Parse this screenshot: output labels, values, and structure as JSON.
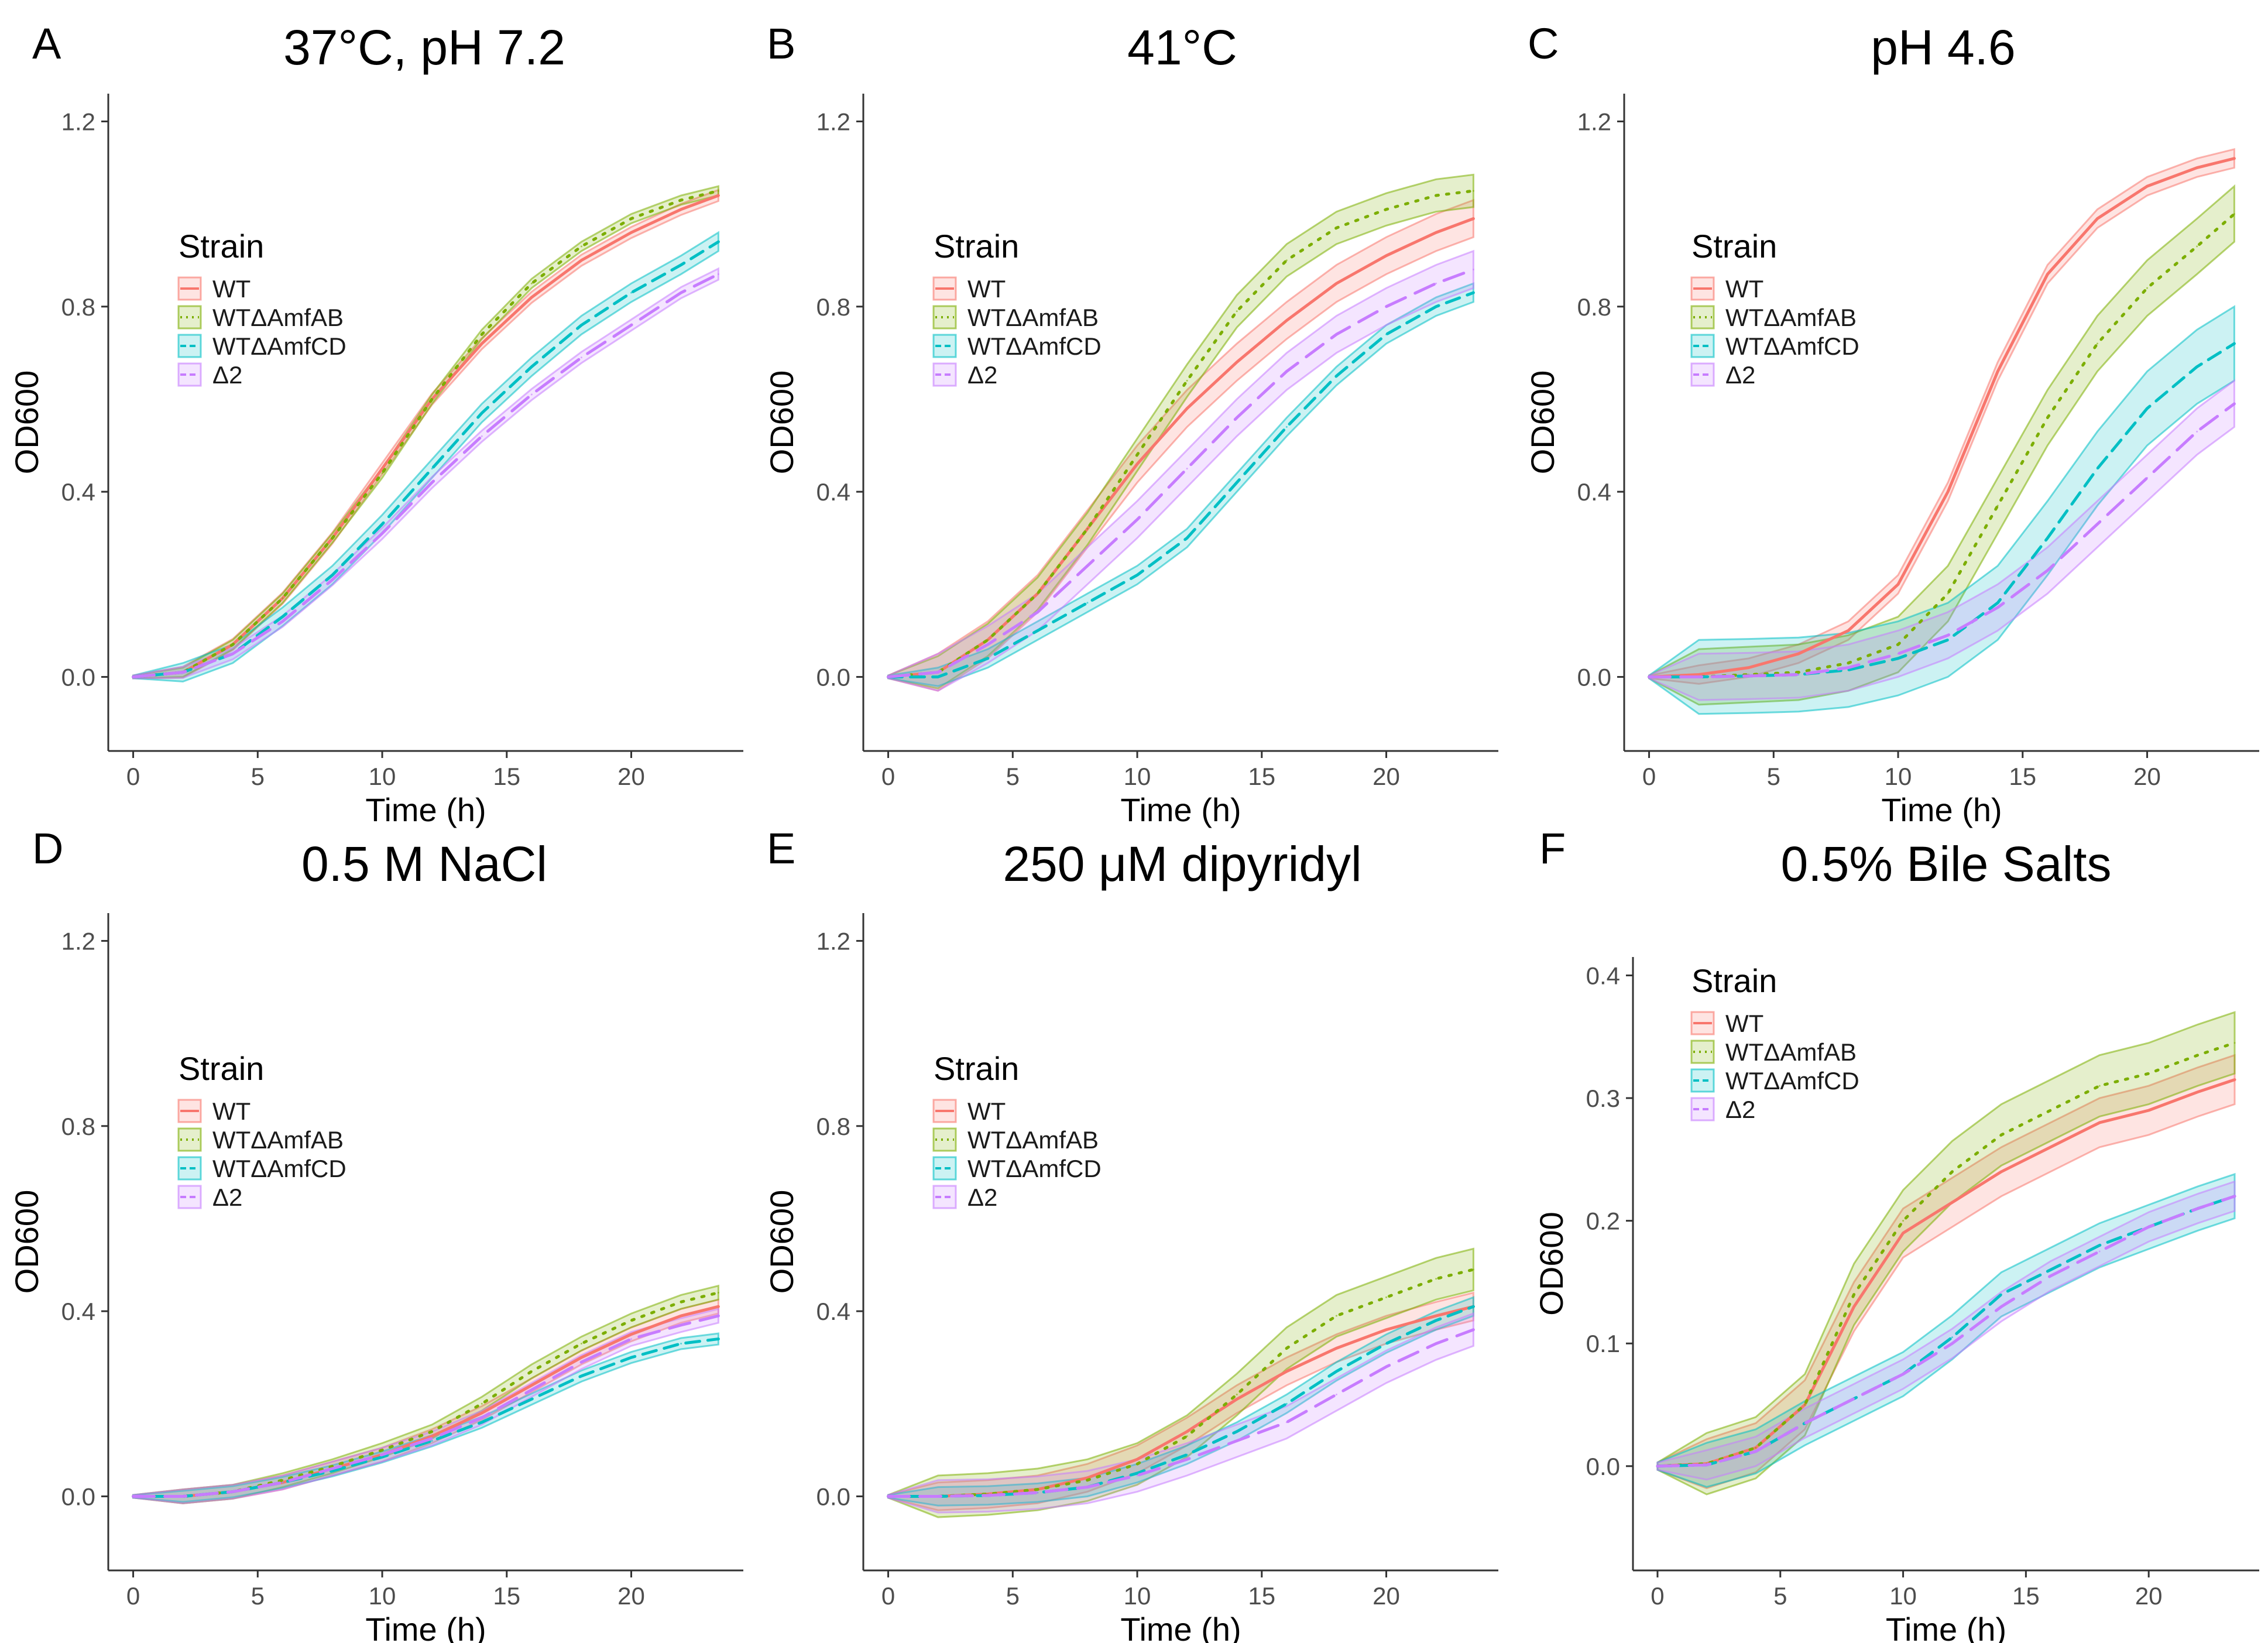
{
  "figure": {
    "legend_title": "Strain",
    "y_label": "OD600",
    "x_label": "Time (h)"
  },
  "strains": [
    {
      "name": "WT",
      "color": "#F8766D",
      "linetype": "solid"
    },
    {
      "name": "WTΔAmfAB",
      "color": "#7CAE00",
      "linetype": "dotted"
    },
    {
      "name": "WTΔAmfCD",
      "color": "#00BFC4",
      "linetype": "dashed"
    },
    {
      "name": "Δ2",
      "color": "#C77CFF",
      "linetype": "longdash"
    }
  ],
  "chart_data": [
    {
      "type": "line",
      "panel": "A",
      "title": "37°C, pH 7.2",
      "xlabel": "Time (h)",
      "ylabel": "OD600",
      "xlim": [
        -1,
        24.5
      ],
      "ylim": [
        -0.16,
        1.26
      ],
      "xticks": [
        0,
        5,
        10,
        15,
        20
      ],
      "yticks": [
        0.0,
        0.4,
        0.8,
        1.2
      ],
      "ytick_labels": [
        "0.0",
        "0.4",
        "0.8",
        "1.2"
      ],
      "x": [
        0,
        2,
        4,
        6,
        8,
        10,
        12,
        14,
        16,
        18,
        20,
        22,
        23.5
      ],
      "series": [
        {
          "name": "WT",
          "values": [
            0,
            0.01,
            0.07,
            0.17,
            0.3,
            0.45,
            0.6,
            0.72,
            0.82,
            0.9,
            0.96,
            1.01,
            1.04
          ],
          "band": 0.012
        },
        {
          "name": "WTΔAmfAB",
          "values": [
            0,
            0.01,
            0.07,
            0.17,
            0.3,
            0.44,
            0.6,
            0.74,
            0.85,
            0.93,
            0.99,
            1.03,
            1.05
          ],
          "band": 0.01
        },
        {
          "name": "WTΔAmfCD",
          "values": [
            0,
            0.01,
            0.05,
            0.13,
            0.22,
            0.33,
            0.45,
            0.57,
            0.67,
            0.76,
            0.83,
            0.89,
            0.94
          ],
          "band": 0.02
        },
        {
          "name": "Δ2",
          "values": [
            0,
            0.01,
            0.05,
            0.12,
            0.21,
            0.31,
            0.42,
            0.52,
            0.61,
            0.69,
            0.76,
            0.83,
            0.87
          ],
          "band": 0.012
        }
      ]
    },
    {
      "type": "line",
      "panel": "B",
      "title": "41°C",
      "xlabel": "Time (h)",
      "ylabel": "OD600",
      "xlim": [
        -1,
        24.5
      ],
      "ylim": [
        -0.16,
        1.26
      ],
      "xticks": [
        0,
        5,
        10,
        15,
        20
      ],
      "yticks": [
        0.0,
        0.4,
        0.8,
        1.2
      ],
      "ytick_labels": [
        "0.0",
        "0.4",
        "0.8",
        "1.2"
      ],
      "x": [
        0,
        2,
        4,
        6,
        8,
        10,
        12,
        14,
        16,
        18,
        20,
        22,
        23.5
      ],
      "series": [
        {
          "name": "WT",
          "values": [
            0,
            0.01,
            0.08,
            0.18,
            0.32,
            0.46,
            0.58,
            0.68,
            0.77,
            0.85,
            0.91,
            0.96,
            0.99
          ],
          "band": 0.04
        },
        {
          "name": "WTΔAmfAB",
          "values": [
            0,
            0.01,
            0.08,
            0.18,
            0.32,
            0.48,
            0.64,
            0.79,
            0.9,
            0.97,
            1.01,
            1.04,
            1.05
          ],
          "band": 0.035
        },
        {
          "name": "WTΔAmfCD",
          "values": [
            0,
            0.0,
            0.04,
            0.1,
            0.16,
            0.22,
            0.3,
            0.42,
            0.54,
            0.65,
            0.74,
            0.8,
            0.83
          ],
          "band": 0.02
        },
        {
          "name": "Δ2",
          "values": [
            0,
            0.01,
            0.07,
            0.14,
            0.24,
            0.34,
            0.45,
            0.56,
            0.66,
            0.74,
            0.8,
            0.85,
            0.88
          ],
          "band": 0.04
        }
      ]
    },
    {
      "type": "line",
      "panel": "C",
      "title": "pH 4.6",
      "xlabel": "Time (h)",
      "ylabel": "OD600",
      "xlim": [
        -1,
        24.5
      ],
      "ylim": [
        -0.16,
        1.26
      ],
      "xticks": [
        0,
        5,
        10,
        15,
        20
      ],
      "yticks": [
        0.0,
        0.4,
        0.8,
        1.2
      ],
      "ytick_labels": [
        "0.0",
        "0.4",
        "0.8",
        "1.2"
      ],
      "x": [
        0,
        2,
        4,
        6,
        8,
        10,
        12,
        14,
        16,
        18,
        20,
        22,
        23.5
      ],
      "series": [
        {
          "name": "WT",
          "values": [
            0,
            0.005,
            0.02,
            0.05,
            0.1,
            0.2,
            0.4,
            0.66,
            0.87,
            0.99,
            1.06,
            1.1,
            1.12
          ],
          "band": 0.02
        },
        {
          "name": "WTΔAmfAB",
          "values": [
            0,
            0.0,
            0.005,
            0.01,
            0.03,
            0.07,
            0.18,
            0.37,
            0.56,
            0.72,
            0.84,
            0.93,
            1.0
          ],
          "band": 0.06
        },
        {
          "name": "WTΔAmfCD",
          "values": [
            0,
            0.0,
            0.002,
            0.005,
            0.015,
            0.04,
            0.08,
            0.16,
            0.3,
            0.45,
            0.58,
            0.67,
            0.72
          ],
          "band": 0.08
        },
        {
          "name": "Δ2",
          "values": [
            0,
            0.0,
            0.002,
            0.005,
            0.02,
            0.05,
            0.09,
            0.15,
            0.23,
            0.33,
            0.43,
            0.53,
            0.59
          ],
          "band": 0.05
        }
      ]
    },
    {
      "type": "line",
      "panel": "D",
      "title": "0.5 M NaCl",
      "xlabel": "Time (h)",
      "ylabel": "OD600",
      "xlim": [
        -1,
        24.5
      ],
      "ylim": [
        -0.16,
        1.26
      ],
      "xticks": [
        0,
        5,
        10,
        15,
        20
      ],
      "yticks": [
        0.0,
        0.4,
        0.8,
        1.2
      ],
      "ytick_labels": [
        "0.0",
        "0.4",
        "0.8",
        "1.2"
      ],
      "x": [
        0,
        2,
        4,
        6,
        8,
        10,
        12,
        14,
        16,
        18,
        20,
        22,
        23.5
      ],
      "series": [
        {
          "name": "WT",
          "values": [
            0,
            0.0,
            0.01,
            0.03,
            0.06,
            0.09,
            0.13,
            0.18,
            0.24,
            0.3,
            0.35,
            0.39,
            0.41
          ],
          "band": 0.015
        },
        {
          "name": "WTΔAmfAB",
          "values": [
            0,
            0.0,
            0.01,
            0.035,
            0.065,
            0.1,
            0.14,
            0.2,
            0.27,
            0.33,
            0.38,
            0.42,
            0.44
          ],
          "band": 0.015
        },
        {
          "name": "WTΔAmfCD",
          "values": [
            0,
            0.0,
            0.01,
            0.03,
            0.055,
            0.085,
            0.12,
            0.16,
            0.21,
            0.26,
            0.3,
            0.33,
            0.34
          ],
          "band": 0.012
        },
        {
          "name": "Δ2",
          "values": [
            0,
            0.0,
            0.01,
            0.03,
            0.06,
            0.09,
            0.125,
            0.17,
            0.23,
            0.29,
            0.34,
            0.37,
            0.39
          ],
          "band": 0.015
        }
      ]
    },
    {
      "type": "line",
      "panel": "E",
      "title": "250 μM dipyridyl",
      "xlabel": "Time (h)",
      "ylabel": "OD600",
      "xlim": [
        -1,
        24.5
      ],
      "ylim": [
        -0.16,
        1.26
      ],
      "xticks": [
        0,
        5,
        10,
        15,
        20
      ],
      "yticks": [
        0.0,
        0.4,
        0.8,
        1.2
      ],
      "ytick_labels": [
        "0.0",
        "0.4",
        "0.8",
        "1.2"
      ],
      "x": [
        0,
        2,
        4,
        6,
        8,
        10,
        12,
        14,
        16,
        18,
        20,
        22,
        23.5
      ],
      "series": [
        {
          "name": "WT",
          "values": [
            0,
            0.0,
            0.005,
            0.015,
            0.04,
            0.08,
            0.14,
            0.21,
            0.27,
            0.32,
            0.36,
            0.39,
            0.41
          ],
          "band": 0.03
        },
        {
          "name": "WTΔAmfAB",
          "values": [
            0,
            0.0,
            0.005,
            0.015,
            0.035,
            0.07,
            0.13,
            0.22,
            0.32,
            0.39,
            0.43,
            0.47,
            0.49
          ],
          "band": 0.045
        },
        {
          "name": "WTΔAmfCD",
          "values": [
            0,
            0.0,
            0.002,
            0.008,
            0.02,
            0.05,
            0.09,
            0.14,
            0.2,
            0.27,
            0.33,
            0.38,
            0.41
          ],
          "band": 0.02
        },
        {
          "name": "Δ2",
          "values": [
            0,
            0.0,
            0.002,
            0.008,
            0.02,
            0.045,
            0.08,
            0.12,
            0.16,
            0.22,
            0.28,
            0.33,
            0.36
          ],
          "band": 0.035
        }
      ]
    },
    {
      "type": "line",
      "panel": "F",
      "title": "0.5% Bile Salts",
      "xlabel": "Time (h)",
      "ylabel": "OD600",
      "xlim": [
        -1,
        24.5
      ],
      "ylim": [
        -0.085,
        0.415
      ],
      "xticks": [
        0,
        5,
        10,
        15,
        20
      ],
      "yticks": [
        0.0,
        0.1,
        0.2,
        0.3,
        0.4
      ],
      "ytick_labels": [
        "0.0",
        "0.1",
        "0.2",
        "0.3",
        "0.4"
      ],
      "x": [
        0,
        2,
        4,
        6,
        8,
        10,
        12,
        14,
        16,
        18,
        20,
        22,
        23.5
      ],
      "series": [
        {
          "name": "WT",
          "values": [
            0,
            0.002,
            0.015,
            0.05,
            0.13,
            0.19,
            0.215,
            0.24,
            0.26,
            0.28,
            0.29,
            0.305,
            0.315
          ],
          "band": 0.02
        },
        {
          "name": "WTΔAmfAB",
          "values": [
            0,
            0.002,
            0.015,
            0.05,
            0.14,
            0.2,
            0.24,
            0.27,
            0.29,
            0.31,
            0.32,
            0.335,
            0.345
          ],
          "band": 0.025
        },
        {
          "name": "WTΔAmfCD",
          "values": [
            0,
            0.001,
            0.012,
            0.035,
            0.055,
            0.075,
            0.105,
            0.14,
            0.16,
            0.18,
            0.195,
            0.21,
            0.22
          ],
          "band": 0.018
        },
        {
          "name": "Δ2",
          "values": [
            0,
            0.001,
            0.012,
            0.035,
            0.055,
            0.075,
            0.1,
            0.13,
            0.155,
            0.175,
            0.195,
            0.21,
            0.22
          ],
          "band": 0.012
        }
      ]
    }
  ]
}
